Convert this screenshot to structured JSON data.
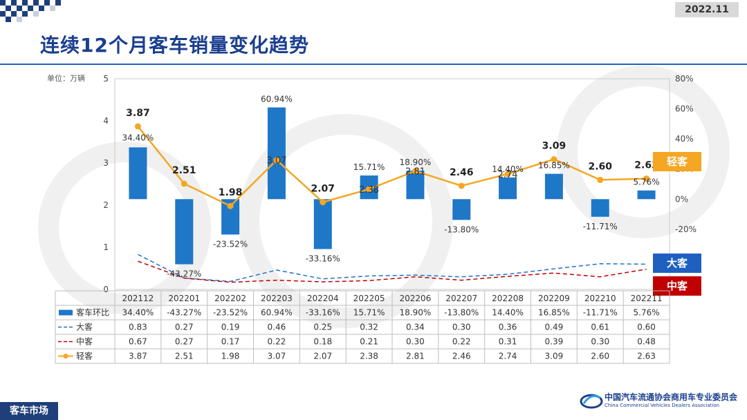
{
  "header": {
    "date": "2022.11",
    "title": "连续12个月客车销量变化趋势",
    "unit": "单位：万辆"
  },
  "footer": {
    "section": "客车市场",
    "assoc_cn": "中国汽车流通协会商用车专业委员会",
    "assoc_en": "China Commercial Vehicles Dealers Association"
  },
  "colors": {
    "bar": "#1f77c8",
    "dake": "#1f6fd0",
    "zhongke": "#c00000",
    "qingke": "#f5a623"
  },
  "chart_data": {
    "type": "combo-bar-line",
    "categories": [
      "202112",
      "202201",
      "202202",
      "202203",
      "202204",
      "202205",
      "202206",
      "202207",
      "202208",
      "202209",
      "202210",
      "202211"
    ],
    "left_axis": {
      "min": 0,
      "max": 5,
      "ticks": [
        "0",
        "1",
        "2",
        "3",
        "4",
        "5"
      ]
    },
    "right_axis": {
      "min": -60,
      "max": 80,
      "ticks": [
        "80%",
        "60%",
        "40%",
        "20%",
        "0%",
        "-20%"
      ]
    },
    "series": [
      {
        "name": "客车环比",
        "kind": "bar",
        "axis": "right",
        "values": [
          34.4,
          -43.27,
          -23.52,
          60.94,
          -33.16,
          15.71,
          18.9,
          -13.8,
          14.4,
          16.85,
          -11.71,
          5.76
        ],
        "labels": [
          "34.40%",
          "-43.27%",
          "-23.52%",
          "60.94%",
          "-33.16%",
          "15.71%",
          "18.90%",
          "-13.80%",
          "14.40%",
          "16.85%",
          "-11.71%",
          "5.76%"
        ]
      },
      {
        "name": "大客",
        "kind": "dashed-line",
        "axis": "left",
        "values": [
          0.83,
          0.27,
          0.19,
          0.46,
          0.25,
          0.32,
          0.34,
          0.3,
          0.36,
          0.49,
          0.61,
          0.6
        ],
        "labels": [
          "0.83",
          "0.27",
          "0.19",
          "0.46",
          "0.25",
          "0.32",
          "0.34",
          "0.30",
          "0.36",
          "0.49",
          "0.61",
          "0.60"
        ]
      },
      {
        "name": "中客",
        "kind": "dashed-line",
        "axis": "left",
        "values": [
          0.67,
          0.27,
          0.17,
          0.22,
          0.18,
          0.21,
          0.3,
          0.22,
          0.31,
          0.39,
          0.3,
          0.48
        ],
        "labels": [
          "0.67",
          "0.27",
          "0.17",
          "0.22",
          "0.18",
          "0.21",
          "0.30",
          "0.22",
          "0.31",
          "0.39",
          "0.30",
          "0.48"
        ]
      },
      {
        "name": "轻客",
        "kind": "line-marker",
        "axis": "left",
        "values": [
          3.87,
          2.51,
          1.98,
          3.07,
          2.07,
          2.38,
          2.81,
          2.46,
          2.74,
          3.09,
          2.6,
          2.63
        ],
        "labels": [
          "3.87",
          "2.51",
          "1.98",
          "3.07",
          "2.07",
          "2.38",
          "2.81",
          "2.46",
          "2.74",
          "3.09",
          "2.60",
          "2.63"
        ]
      }
    ],
    "tags": {
      "qingke": "轻客",
      "dake": "大客",
      "zhongke": "中客"
    }
  }
}
